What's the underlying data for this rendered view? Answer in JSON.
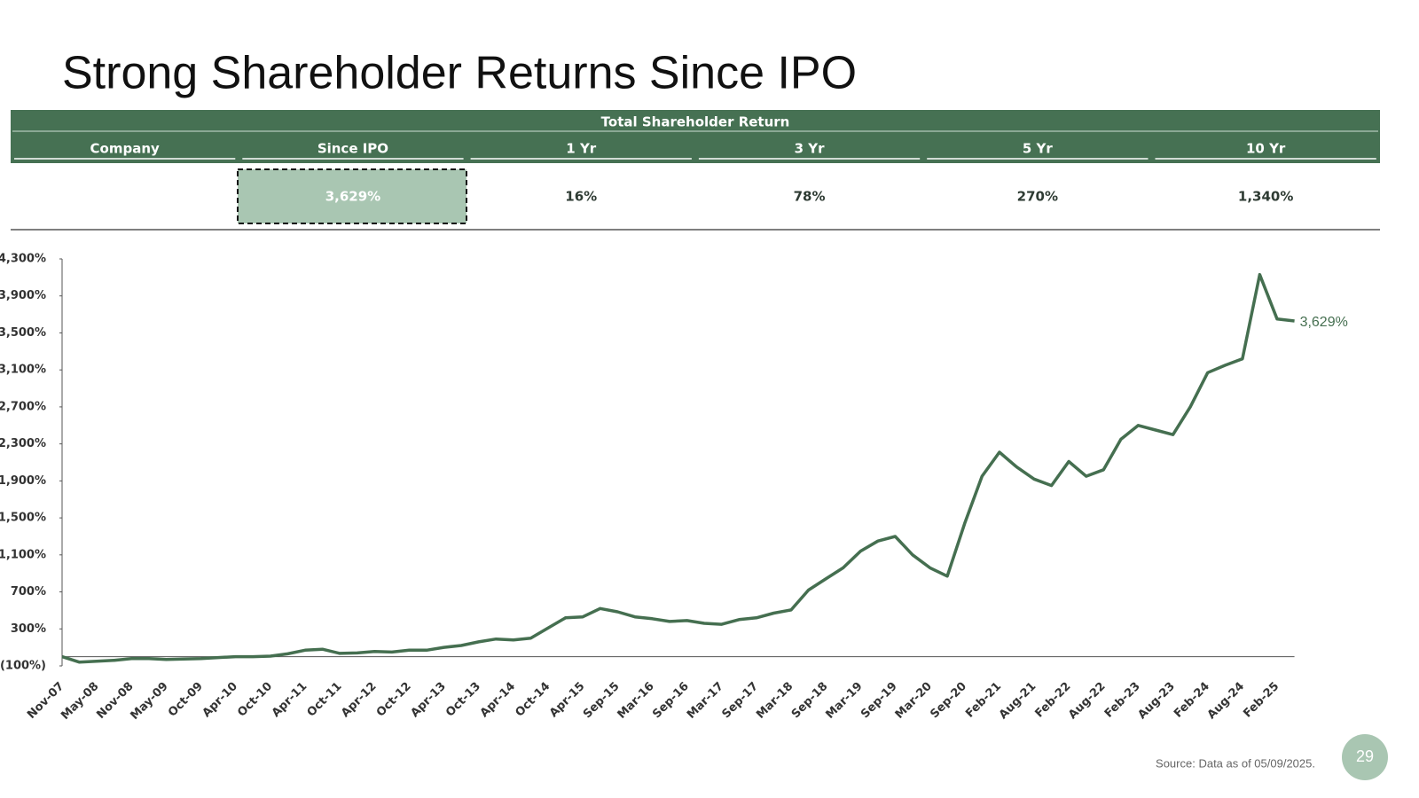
{
  "title": "Strong Shareholder Returns Since IPO",
  "table": {
    "header": "Total Shareholder Return",
    "columns": [
      "Company",
      "Since IPO",
      "1 Yr",
      "3 Yr",
      "5 Yr",
      "10 Yr"
    ],
    "row": [
      "3,629%",
      "16%",
      "78%",
      "270%",
      "1,340%"
    ]
  },
  "chart_data": {
    "type": "line",
    "categories": [
      "Nov-07",
      null,
      "May-08",
      null,
      "Nov-08",
      null,
      "May-09",
      null,
      "Oct-09",
      null,
      "Apr-10",
      null,
      "Oct-10",
      null,
      "Apr-11",
      null,
      "Oct-11",
      null,
      "Apr-12",
      null,
      "Oct-12",
      null,
      "Apr-13",
      null,
      "Oct-13",
      null,
      "Apr-14",
      null,
      "Oct-14",
      null,
      "Apr-15",
      null,
      "Sep-15",
      null,
      "Mar-16",
      null,
      "Sep-16",
      null,
      "Mar-17",
      null,
      "Sep-17",
      null,
      "Mar-18",
      null,
      "Sep-18",
      null,
      "Mar-19",
      null,
      "Sep-19",
      null,
      "Mar-20",
      null,
      "Sep-20",
      null,
      "Feb-21",
      null,
      "Aug-21",
      null,
      "Feb-22",
      null,
      "Aug-22",
      null,
      "Feb-23",
      null,
      "Aug-23",
      null,
      "Feb-24",
      null,
      "Aug-24",
      null,
      "Feb-25",
      null
    ],
    "series": [
      {
        "color": "#456f50",
        "values": [
          0,
          -60,
          -50,
          -40,
          -20,
          -20,
          -30,
          -25,
          -20,
          -10,
          0,
          0,
          5,
          30,
          70,
          80,
          35,
          40,
          55,
          50,
          70,
          70,
          100,
          120,
          160,
          190,
          180,
          200,
          310,
          420,
          430,
          520,
          485,
          430,
          410,
          380,
          390,
          360,
          350,
          400,
          420,
          470,
          505,
          720,
          840,
          960,
          1140,
          1250,
          1300,
          1100,
          960,
          870,
          1440,
          1950,
          2210,
          2050,
          1920,
          1850,
          2110,
          1950,
          2020,
          2350,
          2500,
          2450,
          2400,
          2700,
          3070,
          3150,
          3220,
          4130,
          3650,
          3629
        ],
        "value_labels": [
          null,
          null,
          null,
          null,
          null,
          null,
          null,
          null,
          null,
          null,
          null,
          null,
          null,
          null,
          null,
          null,
          null,
          null,
          null,
          null,
          null,
          null,
          null,
          null,
          null,
          null,
          null,
          null,
          null,
          null,
          null,
          null,
          null,
          null,
          null,
          null,
          null,
          null,
          null,
          null,
          null,
          null,
          null,
          null,
          null,
          null,
          null,
          null,
          null,
          null,
          null,
          null,
          null,
          null,
          null,
          null,
          null,
          null,
          null,
          null,
          null,
          null,
          null,
          null,
          null,
          null,
          null,
          null,
          null,
          null,
          null,
          "3,629%"
        ]
      }
    ],
    "ylim": [
      -100,
      4300
    ],
    "yticks": [
      {
        "value": -100,
        "label": "(100%)"
      },
      {
        "value": 300,
        "label": "300%"
      },
      {
        "value": 700,
        "label": "700%"
      },
      {
        "value": 1100,
        "label": "1,100%"
      },
      {
        "value": 1500,
        "label": "1,500%"
      },
      {
        "value": 1900,
        "label": "1,900%"
      },
      {
        "value": 2300,
        "label": "2,300%"
      },
      {
        "value": 2700,
        "label": "2,700%"
      },
      {
        "value": 3100,
        "label": "3,100%"
      },
      {
        "value": 3500,
        "label": "3,500%"
      },
      {
        "value": 3900,
        "label": "3,900%"
      },
      {
        "value": 4300,
        "label": "4,300%"
      }
    ],
    "grid": false
  },
  "source": "Source: Data as of 05/09/2025.",
  "page_number": "29"
}
